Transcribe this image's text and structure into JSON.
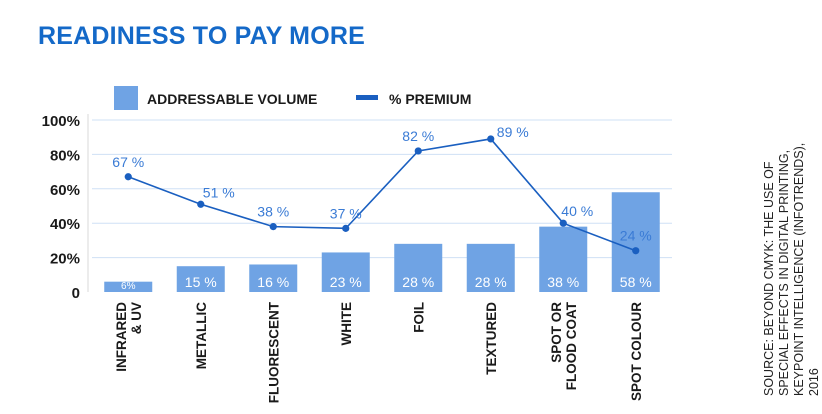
{
  "title": "READINESS TO PAY MORE",
  "source": "SOURCE: BEYOND CMYK: THE USE OF SPECIAL EFFECTS IN DIGITAL PRINTING, KEYPOINT INTELLIGENCE (INFOTRENDS), 2016",
  "colors": {
    "title": "#1469c8",
    "bar": "#6fa3e4",
    "line": "#1a5fc0",
    "label": "#3a7bd5",
    "grid": "#cfe0f5"
  },
  "chart_data": {
    "type": "bar",
    "title": "READINESS TO PAY MORE",
    "categories": [
      "INFRARED & UV",
      "METALLIC",
      "FLUORESCENT",
      "WHITE",
      "FOIL",
      "TEXTURED",
      "SPOT OR FLOOD COAT",
      "SPOT COLOUR"
    ],
    "category_lines": [
      [
        "INFRARED",
        "& UV"
      ],
      [
        "METALLIC"
      ],
      [
        "FLUORESCENT"
      ],
      [
        "WHITE"
      ],
      [
        "FOIL"
      ],
      [
        "TEXTURED"
      ],
      [
        "SPOT OR",
        "FLOOD COAT"
      ],
      [
        "SPOT COLOUR"
      ]
    ],
    "series": [
      {
        "name": "ADDRESSABLE VOLUME",
        "type": "bar",
        "values": [
          6,
          15,
          16,
          23,
          28,
          28,
          38,
          58
        ],
        "labels": [
          "6%",
          "15 %",
          "16 %",
          "23 %",
          "28 %",
          "28 %",
          "38 %",
          "58 %"
        ]
      },
      {
        "name": "% PREMIUM",
        "type": "line",
        "values": [
          67,
          51,
          38,
          37,
          82,
          89,
          40,
          24
        ],
        "labels": [
          "67 %",
          "51 %",
          "38 %",
          "37 %",
          "82 %",
          "89 %",
          "40 %",
          "24 %"
        ]
      }
    ],
    "yticks": [
      "0",
      "20%",
      "40%",
      "60%",
      "80%",
      "100%"
    ],
    "ylim": [
      0,
      100
    ],
    "grid": true,
    "legend": "top"
  }
}
